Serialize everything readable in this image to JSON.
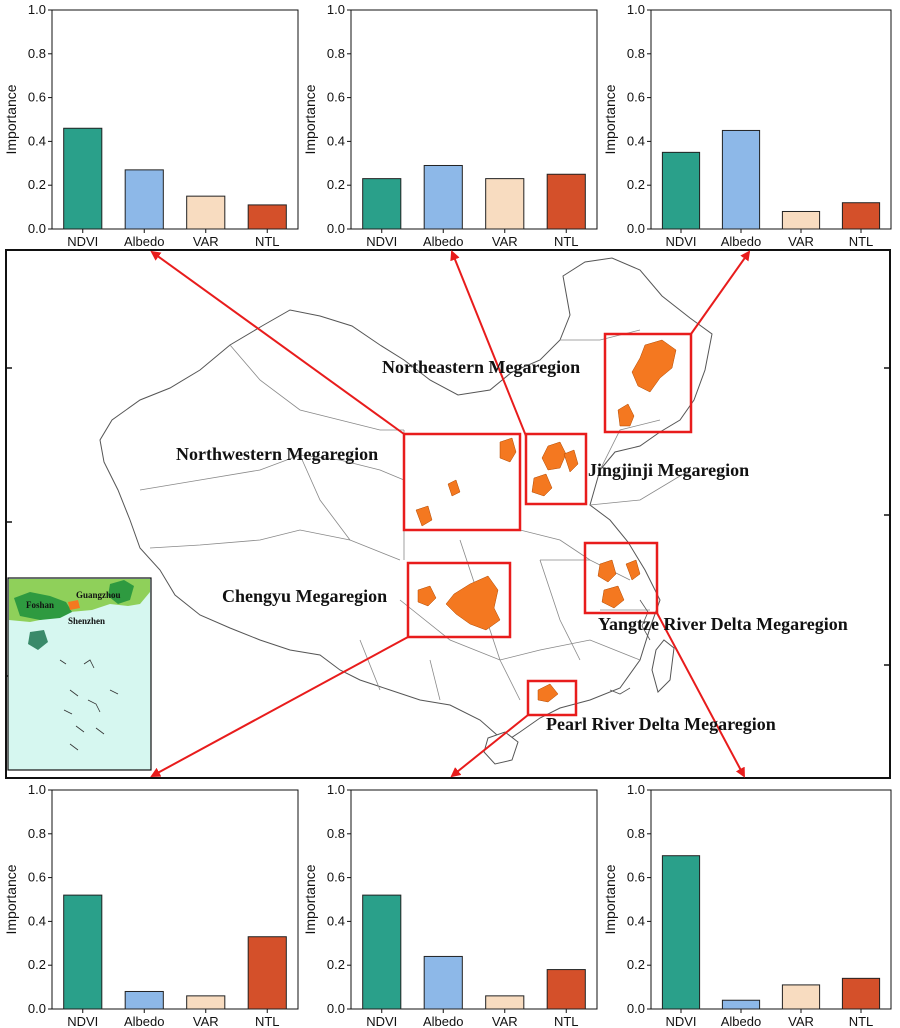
{
  "colors": {
    "NDVI": "#2aa08a",
    "Albedo": "#8db8e8",
    "VAR": "#f8dcc0",
    "NTL": "#d4502a",
    "highlight": "#e81c1c",
    "urban": "#f47820",
    "inset_land": "#8fd05a",
    "inset_region": "#2e9a40",
    "inset_sea": "#d6f7f0"
  },
  "map": {
    "labels": {
      "northeastern": "Northeastern Megaregion",
      "northwestern": "Northwestern Megaregion",
      "jingjinji": "Jingjinji Megaregion",
      "chengyu": "Chengyu Megaregion",
      "yangtze": "Yangtze River Delta Megaregion",
      "pearl": "Pearl River Delta Megaregion"
    },
    "inset": {
      "foshan": "Foshan",
      "guangzhou": "Guangzhou",
      "shenzhen": "Shenzhen"
    }
  },
  "chart_data": [
    {
      "type": "bar",
      "panel": "top-left",
      "region": "Northwestern Megaregion",
      "ylabel": "Importance",
      "ylim": [
        0,
        1.0
      ],
      "yticks": [
        "0.0",
        "0.2",
        "0.4",
        "0.6",
        "0.8",
        "1.0"
      ],
      "categories": [
        "NDVI",
        "Albedo",
        "VAR",
        "NTL"
      ],
      "values": [
        0.46,
        0.27,
        0.15,
        0.11
      ]
    },
    {
      "type": "bar",
      "panel": "top-center",
      "region": "Jingjinji Megaregion",
      "ylabel": "Importance",
      "ylim": [
        0,
        1.0
      ],
      "yticks": [
        "0.0",
        "0.2",
        "0.4",
        "0.6",
        "0.8",
        "1.0"
      ],
      "categories": [
        "NDVI",
        "Albedo",
        "VAR",
        "NTL"
      ],
      "values": [
        0.23,
        0.29,
        0.23,
        0.25
      ]
    },
    {
      "type": "bar",
      "panel": "top-right",
      "region": "Northeastern Megaregion",
      "ylabel": "Importance",
      "ylim": [
        0,
        1.0
      ],
      "yticks": [
        "0.0",
        "0.2",
        "0.4",
        "0.6",
        "0.8",
        "1.0"
      ],
      "categories": [
        "NDVI",
        "Albedo",
        "VAR",
        "NTL"
      ],
      "values": [
        0.35,
        0.45,
        0.08,
        0.12
      ]
    },
    {
      "type": "bar",
      "panel": "bottom-left",
      "region": "Chengyu Megaregion",
      "ylabel": "Importance",
      "ylim": [
        0,
        1.0
      ],
      "yticks": [
        "0.0",
        "0.2",
        "0.4",
        "0.6",
        "0.8",
        "1.0"
      ],
      "categories": [
        "NDVI",
        "Albedo",
        "VAR",
        "NTL"
      ],
      "values": [
        0.52,
        0.08,
        0.06,
        0.33
      ]
    },
    {
      "type": "bar",
      "panel": "bottom-center",
      "region": "Pearl River Delta Megaregion",
      "ylabel": "Importance",
      "ylim": [
        0,
        1.0
      ],
      "yticks": [
        "0.0",
        "0.2",
        "0.4",
        "0.6",
        "0.8",
        "1.0"
      ],
      "categories": [
        "NDVI",
        "Albedo",
        "VAR",
        "NTL"
      ],
      "values": [
        0.52,
        0.24,
        0.06,
        0.18
      ]
    },
    {
      "type": "bar",
      "panel": "bottom-right",
      "region": "Yangtze River Delta Megaregion",
      "ylabel": "Importance",
      "ylim": [
        0,
        1.0
      ],
      "yticks": [
        "0.0",
        "0.2",
        "0.4",
        "0.6",
        "0.8",
        "1.0"
      ],
      "categories": [
        "NDVI",
        "Albedo",
        "VAR",
        "NTL"
      ],
      "values": [
        0.7,
        0.04,
        0.11,
        0.14
      ]
    }
  ]
}
